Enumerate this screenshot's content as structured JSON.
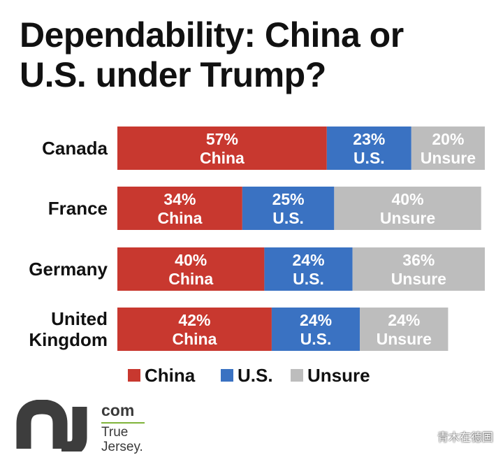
{
  "header": {
    "title_line1": "Dependability: China or",
    "title_line2": "U.S. under Trump?"
  },
  "chart_data": {
    "type": "bar",
    "orientation": "horizontal",
    "stacked": true,
    "title": "Dependability: China or U.S. under Trump?",
    "categories": [
      [
        "Canada"
      ],
      [
        "France"
      ],
      [
        "Germany"
      ],
      [
        "United",
        "Kingdom"
      ]
    ],
    "series": [
      {
        "name": "China",
        "color": "#c8382f",
        "values": [
          57,
          34,
          40,
          42
        ],
        "label": "China"
      },
      {
        "name": "U.S.",
        "color": "#3a72c2",
        "values": [
          23,
          25,
          24,
          24
        ],
        "label": "U.S."
      },
      {
        "name": "Unsure",
        "color": "#bdbdbd",
        "values": [
          20,
          40,
          36,
          24
        ],
        "label": "Unsure"
      }
    ],
    "xlim": [
      0,
      100
    ],
    "grid": false,
    "legend": {
      "placement": "bottom",
      "entries": [
        "China",
        "U.S.",
        "Unsure"
      ]
    }
  },
  "logo": {
    "mark": "nj",
    "com": "com",
    "sub1": "True",
    "sub2": "Jersey."
  },
  "watermark": "青木在德国"
}
